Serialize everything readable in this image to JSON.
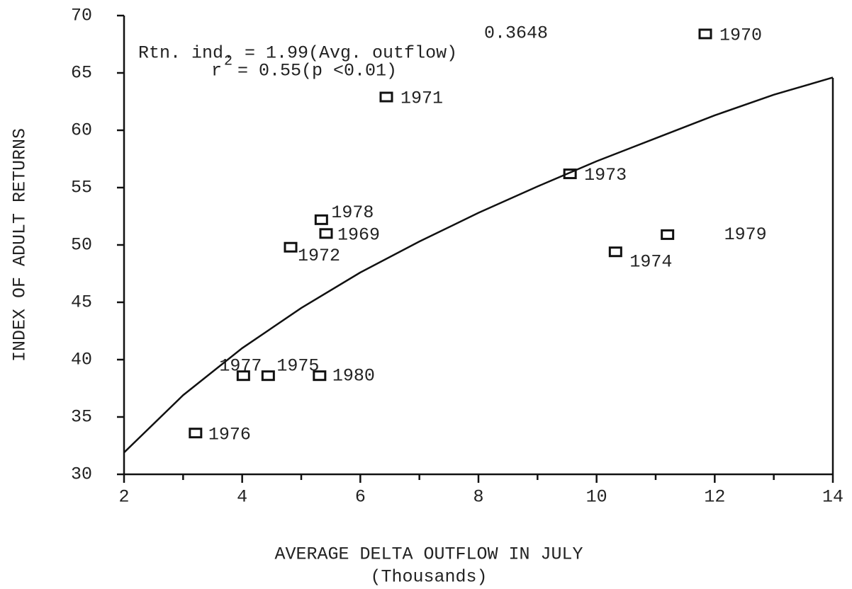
{
  "chart_data": {
    "type": "scatter",
    "xlabel": [
      "AVERAGE DELTA OUTFLOW IN JULY",
      "(Thousands)"
    ],
    "ylabel": "INDEX OF ADULT RETURNS",
    "annotations": [
      "Rtn. ind. = 1.99(Avg. outflow)",
      "0.3648",
      "r",
      "2",
      "= 0.55(p <0.01)"
    ],
    "xlim": [
      2,
      14
    ],
    "ylim": [
      30,
      70
    ],
    "xticks": [
      2,
      4,
      6,
      8,
      10,
      12,
      14
    ],
    "xminor_ticks": [
      3,
      5,
      7,
      9,
      11,
      13
    ],
    "yticks": [
      30,
      35,
      40,
      45,
      50,
      55,
      60,
      65,
      70
    ],
    "color": "#111111",
    "series": [
      {
        "labels": [
          "1970",
          "1971",
          "1973",
          "1978",
          "1969",
          "1972",
          "1979",
          "1974",
          "1977",
          "1975",
          "1980",
          "1976"
        ],
        "x": [
          11.84,
          6.44,
          9.55,
          5.34,
          5.42,
          4.82,
          11.2,
          10.32,
          4.02,
          4.44,
          5.31,
          3.21
        ],
        "values": [
          68.4,
          62.9,
          56.2,
          52.2,
          51.0,
          49.8,
          50.9,
          49.4,
          38.6,
          38.6,
          38.6,
          33.6
        ]
      },
      {
        "type": "line",
        "x": [
          2,
          3,
          4,
          5,
          6,
          7,
          8,
          9,
          10,
          11,
          12,
          13,
          14
        ],
        "values": [
          31.9,
          36.9,
          41.0,
          44.5,
          47.6,
          50.3,
          52.8,
          55.1,
          57.3,
          59.3,
          61.3,
          63.1,
          64.6
        ]
      }
    ]
  }
}
